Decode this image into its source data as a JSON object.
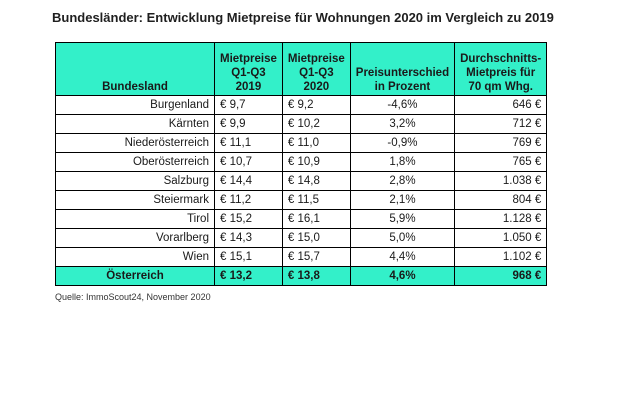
{
  "title": "Bundesländer: Entwicklung Mietpreise für Wohnungen 2020 im Vergleich zu 2019",
  "table": {
    "headers": [
      [
        "Bundesland"
      ],
      [
        "Mietpreise",
        "Q1-Q3 2019"
      ],
      [
        "Mietpreise",
        "Q1-Q3 2020"
      ],
      [
        "Preisunterschied",
        "in Prozent"
      ],
      [
        "Durchschnitts-",
        "Mietpreis für",
        "70 qm Whg."
      ]
    ],
    "rows": [
      [
        "Burgenland",
        "€ 9,7",
        "€ 9,2",
        "-4,6%",
        "646 €"
      ],
      [
        "Kärnten",
        "€ 9,9",
        "€ 10,2",
        "3,2%",
        "712 €"
      ],
      [
        "Niederösterreich",
        "€ 11,1",
        "€ 11,0",
        "-0,9%",
        "769 €"
      ],
      [
        "Oberösterreich",
        "€ 10,7",
        "€ 10,9",
        "1,8%",
        "765 €"
      ],
      [
        "Salzburg",
        "€ 14,4",
        "€ 14,8",
        "2,8%",
        "1.038 €"
      ],
      [
        "Steiermark",
        "€ 11,2",
        "€ 11,5",
        "2,1%",
        "804 €"
      ],
      [
        "Tirol",
        "€ 15,2",
        "€ 16,1",
        "5,9%",
        "1.128 €"
      ],
      [
        "Vorarlberg",
        "€ 14,3",
        "€ 15,0",
        "5,0%",
        "1.050 €"
      ],
      [
        "Wien",
        "€ 15,1",
        "€ 15,7",
        "4,4%",
        "1.102 €"
      ]
    ],
    "total": [
      "Österreich",
      "€ 13,2",
      "€ 13,8",
      "4,6%",
      "968 €"
    ]
  },
  "source": "Quelle: ImmoScout24, November 2020",
  "colors": {
    "header_bg": "#33f0c9",
    "border": "#000000"
  }
}
